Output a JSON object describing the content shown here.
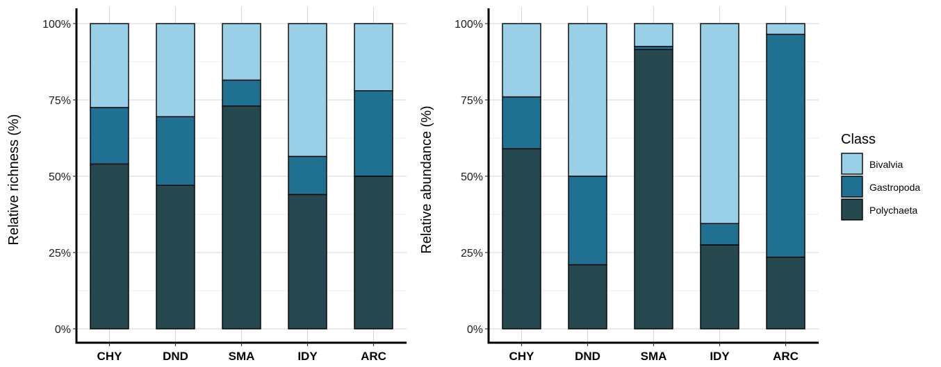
{
  "chart_data": [
    {
      "type": "bar",
      "stacked": true,
      "categories": [
        "CHY",
        "DND",
        "SMA",
        "IDY",
        "ARC"
      ],
      "series": [
        {
          "name": "Polychaeta",
          "values": [
            54,
            47,
            73,
            44,
            50
          ]
        },
        {
          "name": "Gastropoda",
          "values": [
            18.5,
            22.5,
            8.5,
            12.5,
            28
          ]
        },
        {
          "name": "Bivalvia",
          "values": [
            27.5,
            30.5,
            18.5,
            43.5,
            22
          ]
        }
      ],
      "ylabel": "Relative richness (%)",
      "xlabel": "",
      "yticks": [
        "0%",
        "25%",
        "50%",
        "75%",
        "100%"
      ],
      "ylim": [
        0,
        100
      ],
      "grid": true
    },
    {
      "type": "bar",
      "stacked": true,
      "categories": [
        "CHY",
        "DND",
        "SMA",
        "IDY",
        "ARC"
      ],
      "series": [
        {
          "name": "Polychaeta",
          "values": [
            59,
            21,
            91.5,
            27.5,
            23.5
          ]
        },
        {
          "name": "Gastropoda",
          "values": [
            17,
            29,
            1,
            7,
            73
          ]
        },
        {
          "name": "Bivalvia",
          "values": [
            24,
            50,
            7.5,
            65.5,
            3.5
          ]
        }
      ],
      "ylabel": "Relative abundance (%)",
      "xlabel": "",
      "yticks": [
        "0%",
        "25%",
        "50%",
        "75%",
        "100%"
      ],
      "ylim": [
        0,
        100
      ],
      "grid": true
    }
  ],
  "legend": {
    "title": "Class",
    "position": "right",
    "items": [
      {
        "name": "Bivalvia"
      },
      {
        "name": "Gastropoda"
      },
      {
        "name": "Polychaeta"
      }
    ]
  },
  "colors": {
    "Bivalvia": "#9ad0e7",
    "Gastropoda": "#1f7091",
    "Polychaeta": "#264950"
  }
}
